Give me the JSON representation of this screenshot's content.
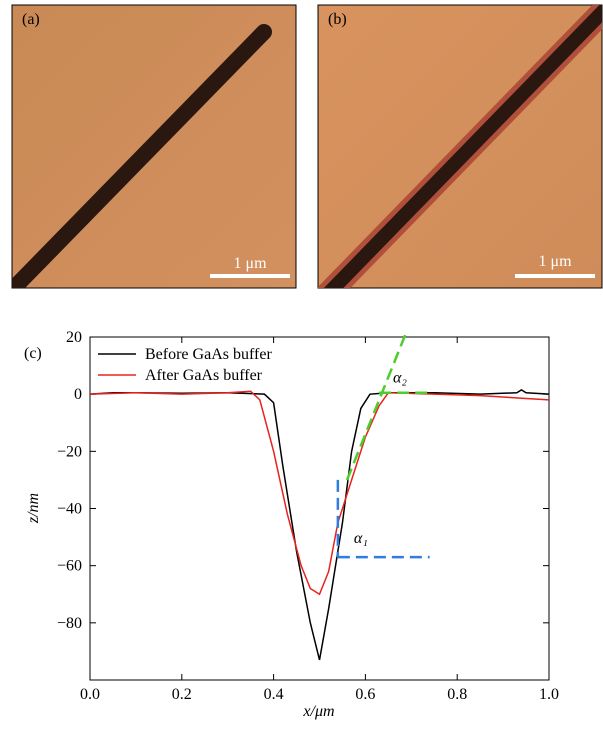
{
  "panels": [
    {
      "label": "(a)",
      "scale_bar": "1 μm"
    },
    {
      "label": "(b)",
      "scale_bar": "1 μm"
    }
  ],
  "chart_data": {
    "type": "line",
    "panel_label": "(c)",
    "x_label": "x/μm",
    "y_label": "z/nm",
    "xlim": [
      0,
      1
    ],
    "ylim": [
      -100,
      20
    ],
    "xticks": [
      {
        "value": 0,
        "label": "0.0"
      },
      0.2,
      0.4,
      0.6,
      0.8,
      {
        "value": 1,
        "label": "1.0"
      }
    ],
    "yticks": [
      20,
      {
        "value": 0,
        "label": "0"
      },
      {
        "value": -20,
        "label": "−20"
      },
      {
        "value": -40,
        "label": "−40"
      },
      {
        "value": -60,
        "label": "−60"
      },
      {
        "value": -80,
        "label": "−80"
      }
    ],
    "legend": "upper left",
    "series": [
      {
        "name": "Before GaAs buffer",
        "color": "#000000",
        "x": [
          0,
          0.05,
          0.1,
          0.2,
          0.3,
          0.38,
          0.4,
          0.42,
          0.45,
          0.48,
          0.5,
          0.52,
          0.55,
          0.57,
          0.59,
          0.61,
          0.65,
          0.75,
          0.85,
          0.93,
          0.94,
          0.95,
          1.0
        ],
        "values": [
          0,
          0.5,
          0.5,
          0.3,
          0.5,
          0,
          -3,
          -25,
          -55,
          -80,
          -93,
          -75,
          -45,
          -20,
          -5,
          0,
          0.5,
          0.5,
          0,
          0.5,
          1.5,
          0.5,
          0
        ]
      },
      {
        "name": "After GaAs buffer",
        "color": "#e8231e",
        "x": [
          0,
          0.1,
          0.2,
          0.3,
          0.35,
          0.37,
          0.4,
          0.43,
          0.46,
          0.48,
          0.5,
          0.52,
          0.54,
          0.57,
          0.6,
          0.63,
          0.65,
          0.75,
          0.85,
          0.95,
          1.0
        ],
        "values": [
          0,
          0.5,
          0,
          0.5,
          1,
          -2,
          -20,
          -42,
          -60,
          -68,
          -70,
          -62,
          -45,
          -30,
          -15,
          -4,
          0.5,
          0,
          -0.5,
          -1.5,
          -2
        ]
      }
    ],
    "guides": [
      {
        "label": "α₂",
        "color": "#4ccd2b",
        "x": [
          0.56,
          0.69
        ],
        "y": [
          -30,
          22
        ],
        "x2": [
          0.63,
          0.74
        ],
        "y2": [
          0.5,
          0.5
        ],
        "label_x": 0.66,
        "label_y": 4
      },
      {
        "label": "α₁",
        "color": "#2f7de1",
        "x": [
          0.54,
          0.54
        ],
        "y": [
          -30,
          -57
        ],
        "x2": [
          0.54,
          0.74
        ],
        "y2": [
          -57,
          -57
        ],
        "label_x": 0.575,
        "label_y": -52
      }
    ]
  }
}
